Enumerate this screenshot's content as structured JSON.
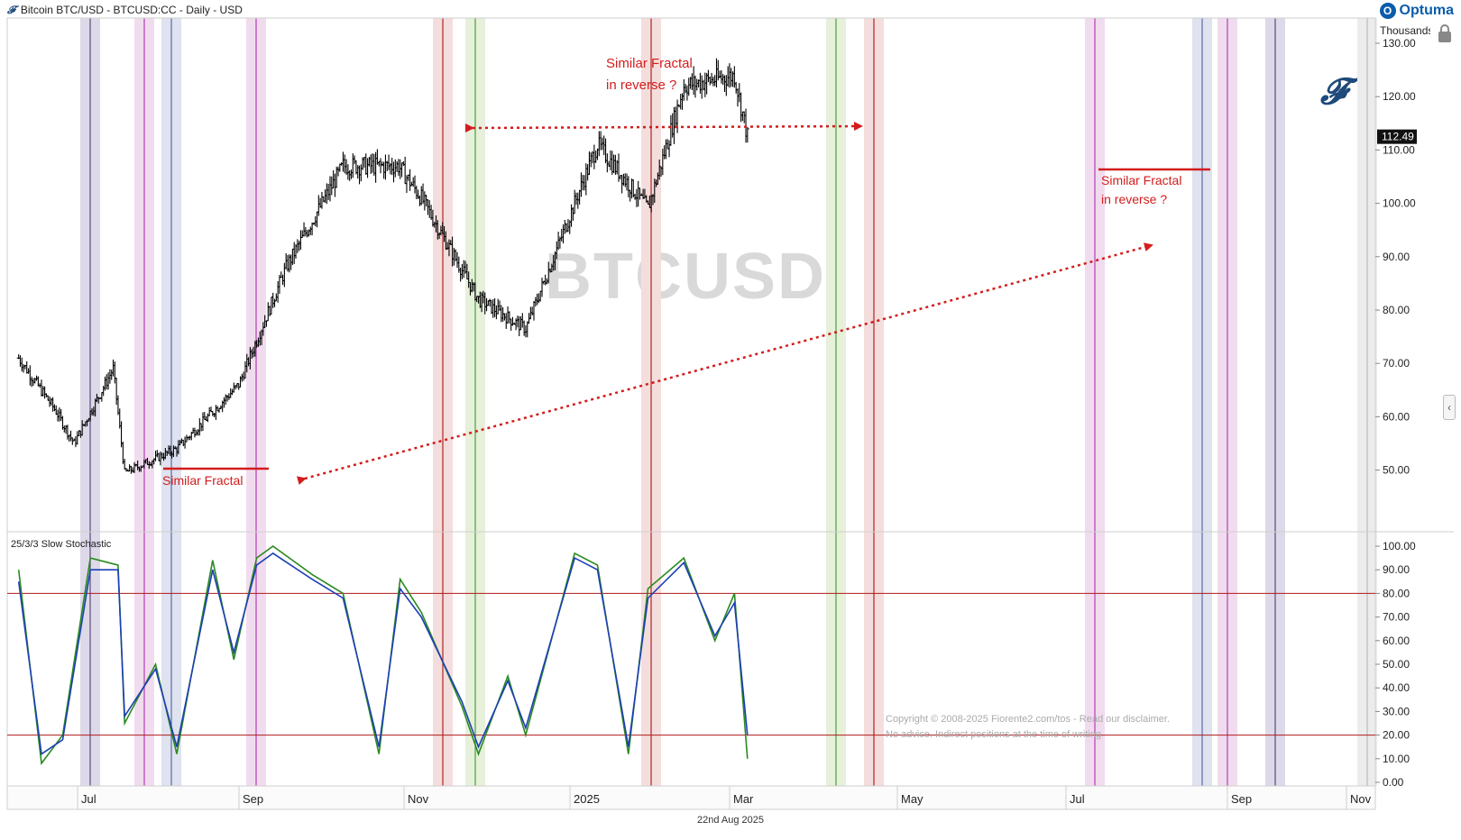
{
  "header": {
    "title": "Bitcoin BTC/USD - BTCUSD:CC - Daily - USD",
    "brand": "Optuma",
    "units": "Thousands",
    "last_price": "112.49"
  },
  "watermark": "BTCUSD",
  "copyright": "Copyright © 2008-2025 Fiorente2.com/tos - Read our disclaimer. No advice. Indirect positions at the time of writing",
  "footer_date": "22nd Aug 2025",
  "annotations": {
    "top": [
      "Similar Fractal",
      "in reverse ?"
    ],
    "right": [
      "Similar Fractal",
      "in reverse ?"
    ],
    "left": "Similar Fractal"
  },
  "colors": {
    "price_bars": "#000000",
    "annotation_red": "#d21d1d",
    "stoch_k": "#2a8a1f",
    "stoch_d": "#1d3fb5",
    "guide_red": "#b01a1a"
  },
  "chart_data": [
    {
      "type": "line",
      "title": "Bitcoin BTC/USD - BTCUSD:CC - Daily - USD",
      "ylabel": "Thousands",
      "ylim": [
        40,
        130
      ],
      "y_ticks": [
        "50.00",
        "60.00",
        "70.00",
        "80.00",
        "90.00",
        "100.00",
        "110.00",
        "120.00",
        "130.00"
      ],
      "x_ticks": [
        "Jul",
        "Sep",
        "Nov",
        "2025",
        "Mar",
        "May",
        "Jul",
        "Sep",
        "Nov"
      ],
      "series": [
        {
          "x": [
            "2024-06-01",
            "2024-06-24",
            "2024-07-05",
            "2024-07-29",
            "2024-08-05",
            "2024-09-06",
            "2024-10-14",
            "2024-11-12",
            "2024-12-17",
            "2025-01-20",
            "2025-02-03",
            "2025-03-10",
            "2025-04-08",
            "2025-05-22",
            "2025-06-22",
            "2025-07-14",
            "2025-08-14",
            "2025-08-22"
          ],
          "values": [
            71,
            61,
            55,
            69,
            49.5,
            54,
            66,
            88,
            107,
            107,
            101,
            82,
            76.5,
            111,
            99,
            122,
            124,
            112.49
          ]
        }
      ]
    },
    {
      "type": "line",
      "title": "25/3/3 Slow Stochastic",
      "ylim": [
        0,
        100
      ],
      "y_ticks": [
        "0.00",
        "10.00",
        "20.00",
        "30.00",
        "40.00",
        "50.00",
        "60.00",
        "70.00",
        "80.00",
        "90.00",
        "100.00"
      ],
      "reference_lines": [
        20,
        80
      ],
      "series": [
        {
          "name": "%K",
          "x": [
            "2024-06-01",
            "2024-06-15",
            "2024-06-28",
            "2024-07-15",
            "2024-08-01",
            "2024-08-05",
            "2024-08-24",
            "2024-09-06",
            "2024-09-28",
            "2024-10-11",
            "2024-10-25",
            "2024-11-04",
            "2024-11-28",
            "2024-12-17",
            "2025-01-08",
            "2025-01-21",
            "2025-02-03",
            "2025-02-28",
            "2025-03-10",
            "2025-03-28",
            "2025-04-08",
            "2025-05-08",
            "2025-05-22",
            "2025-06-10",
            "2025-06-22",
            "2025-07-14",
            "2025-08-02",
            "2025-08-14",
            "2025-08-22"
          ],
          "values": [
            90,
            8,
            20,
            95,
            92,
            25,
            50,
            12,
            94,
            52,
            95,
            100,
            88,
            80,
            12,
            86,
            72,
            32,
            12,
            45,
            20,
            97,
            92,
            12,
            82,
            95,
            60,
            80,
            10
          ]
        },
        {
          "name": "%D",
          "x": [
            "2024-06-01",
            "2024-06-15",
            "2024-06-28",
            "2024-07-15",
            "2024-08-01",
            "2024-08-05",
            "2024-08-24",
            "2024-09-06",
            "2024-09-28",
            "2024-10-11",
            "2024-10-25",
            "2024-11-04",
            "2024-11-28",
            "2024-12-17",
            "2025-01-08",
            "2025-01-21",
            "2025-02-03",
            "2025-02-28",
            "2025-03-10",
            "2025-03-28",
            "2025-04-08",
            "2025-05-08",
            "2025-05-22",
            "2025-06-10",
            "2025-06-22",
            "2025-07-14",
            "2025-08-02",
            "2025-08-14",
            "2025-08-22"
          ],
          "values": [
            85,
            12,
            18,
            90,
            90,
            28,
            48,
            15,
            90,
            55,
            92,
            97,
            86,
            78,
            15,
            82,
            70,
            34,
            15,
            43,
            23,
            95,
            90,
            15,
            78,
            93,
            62,
            76,
            20
          ]
        }
      ]
    }
  ]
}
